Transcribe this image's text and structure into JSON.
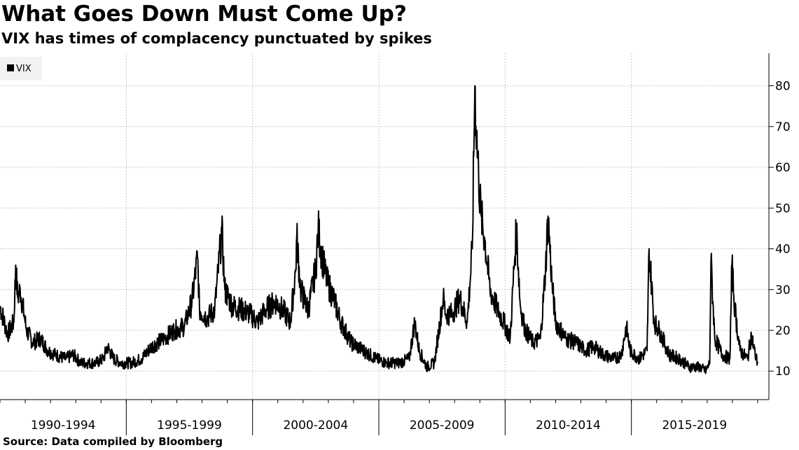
{
  "title": "What Goes Down Must Come Up?",
  "subtitle": "VIX has times of complacency punctuated by spikes",
  "source": "Source: Data compiled by Bloomberg",
  "chart_data": {
    "type": "line",
    "title": "What Goes Down Must Come Up?",
    "subtitle": "VIX has times of complacency punctuated by spikes",
    "xlabel": "",
    "ylabel": "",
    "categories": [
      "1990-1994",
      "1995-1999",
      "2000-2004",
      "2005-2009",
      "2010-2014",
      "2015-2019"
    ],
    "xlim": [
      1990.0,
      2020.0
    ],
    "ylim": [
      3,
      88
    ],
    "yticks": [
      10,
      20,
      30,
      40,
      50,
      60,
      70,
      80
    ],
    "y_axis_side": "right",
    "grid": true,
    "legend": "top-left",
    "series": [
      {
        "name": "VIX",
        "color": "#000000",
        "x": [
          1990.0,
          1990.3,
          1990.55,
          1990.62,
          1990.7,
          1990.8,
          1990.95,
          1991.05,
          1991.3,
          1991.6,
          1991.9,
          1992.2,
          1992.6,
          1992.9,
          1993.2,
          1993.5,
          1993.8,
          1994.1,
          1994.25,
          1994.5,
          1994.8,
          1995.2,
          1995.6,
          1996.0,
          1996.5,
          1996.9,
          1997.3,
          1997.6,
          1997.82,
          1997.9,
          1998.2,
          1998.5,
          1998.72,
          1998.78,
          1998.9,
          1999.2,
          1999.6,
          1999.9,
          2000.2,
          2000.5,
          2000.9,
          2001.2,
          2001.5,
          2001.71,
          2001.75,
          2001.9,
          2002.2,
          2002.5,
          2002.6,
          2002.75,
          2002.95,
          2003.2,
          2003.5,
          2003.9,
          2004.4,
          2004.9,
          2005.3,
          2005.8,
          2006.2,
          2006.42,
          2006.6,
          2006.9,
          2007.2,
          2007.55,
          2007.65,
          2007.9,
          2008.2,
          2008.5,
          2008.7,
          2008.8,
          2008.87,
          2008.95,
          2009.05,
          2009.2,
          2009.4,
          2009.7,
          2009.95,
          2010.2,
          2010.35,
          2010.45,
          2010.6,
          2010.8,
          2011.1,
          2011.4,
          2011.6,
          2011.7,
          2011.85,
          2012.0,
          2012.4,
          2012.8,
          2013.2,
          2013.5,
          2013.9,
          2014.3,
          2014.6,
          2014.8,
          2014.95,
          2015.3,
          2015.62,
          2015.7,
          2015.9,
          2016.1,
          2016.5,
          2016.9,
          2017.3,
          2017.7,
          2017.95,
          2018.1,
          2018.15,
          2018.3,
          2018.6,
          2018.9,
          2018.98,
          2019.1,
          2019.3,
          2019.6,
          2019.75,
          2019.9,
          2020.0
        ],
        "values": [
          26,
          19,
          22,
          36,
          28,
          30,
          24,
          20,
          17,
          18,
          15,
          14,
          13,
          14,
          12,
          12,
          12,
          13,
          16,
          13,
          12,
          12,
          13,
          16,
          18,
          20,
          21,
          27,
          38,
          25,
          23,
          25,
          40,
          45,
          30,
          26,
          25,
          24,
          22,
          25,
          27,
          25,
          22,
          35,
          43,
          30,
          25,
          35,
          45,
          38,
          32,
          28,
          22,
          17,
          15,
          13,
          12,
          12,
          13,
          22,
          15,
          11,
          12,
          28,
          24,
          24,
          28,
          22,
          40,
          80,
          68,
          58,
          48,
          42,
          30,
          25,
          22,
          18,
          35,
          45,
          26,
          20,
          17,
          18,
          35,
          48,
          32,
          22,
          18,
          17,
          15,
          16,
          14,
          13,
          14,
          21,
          15,
          13,
          15,
          40,
          22,
          20,
          14,
          13,
          11,
          11,
          10,
          12,
          37,
          18,
          14,
          13,
          36,
          25,
          15,
          13,
          19,
          14,
          12
        ]
      }
    ]
  }
}
